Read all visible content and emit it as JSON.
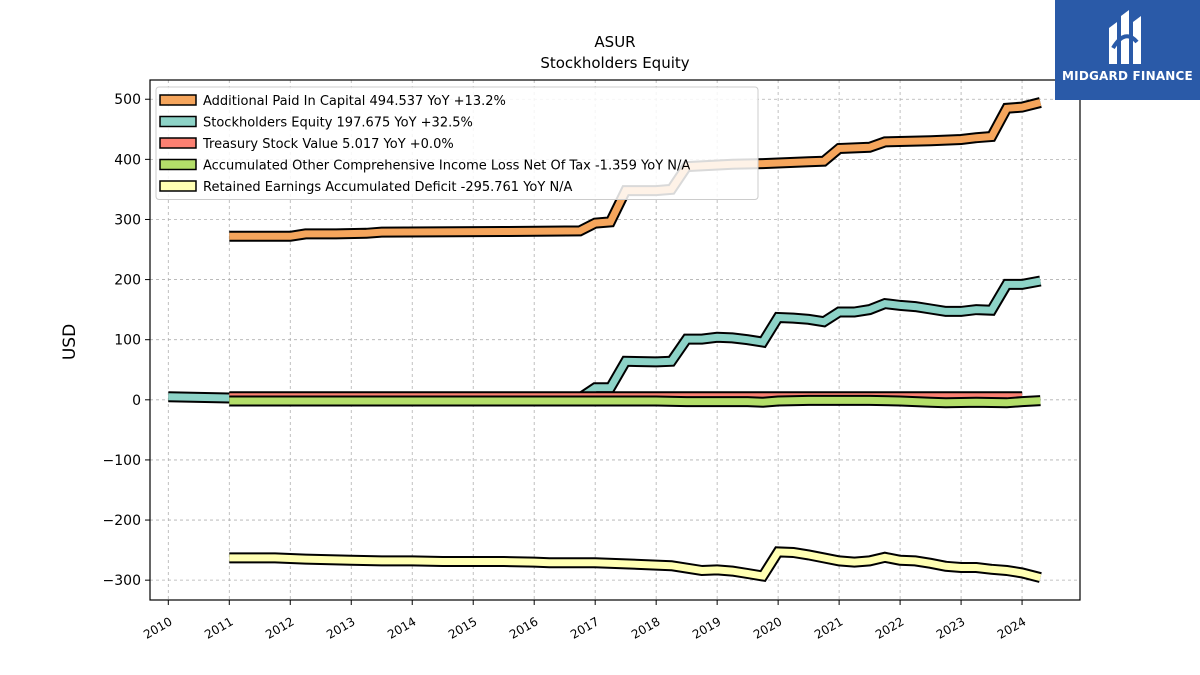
{
  "chart_data": {
    "type": "line",
    "title": "ASUR",
    "subtitle": "Stockholders  Equity",
    "ylabel": "USD",
    "xlabel": "",
    "xlim": [
      2009.7,
      2024.95
    ],
    "ylim": [
      -333,
      532
    ],
    "yticks": [
      -300,
      -200,
      -100,
      0,
      100,
      200,
      300,
      400,
      500
    ],
    "ytick_labels": [
      "−300",
      "−200",
      "−100",
      "0",
      "100",
      "200",
      "300",
      "400",
      "500"
    ],
    "xticks": [
      2010,
      2011,
      2012,
      2013,
      2014,
      2015,
      2016,
      2017,
      2018,
      2019,
      2020,
      2021,
      2022,
      2023,
      2024
    ],
    "xtick_labels": [
      "2010",
      "2011",
      "2012",
      "2013",
      "2014",
      "2015",
      "2016",
      "2017",
      "2018",
      "2019",
      "2020",
      "2021",
      "2022",
      "2023",
      "2024"
    ],
    "grid": true,
    "legend_position": "top-left",
    "series": [
      {
        "name": "Additional Paid In Capital",
        "legend": "Additional Paid In Capital  494.537 YoY +13.2%",
        "color": "#f5a55c",
        "points": [
          [
            2011.0,
            272
          ],
          [
            2012.0,
            272
          ],
          [
            2012.25,
            276
          ],
          [
            2012.75,
            276
          ],
          [
            2013.25,
            277
          ],
          [
            2013.5,
            279
          ],
          [
            2015.5,
            280
          ],
          [
            2016.75,
            281
          ],
          [
            2017.0,
            294
          ],
          [
            2017.25,
            296
          ],
          [
            2017.5,
            348
          ],
          [
            2018.0,
            348
          ],
          [
            2018.25,
            350
          ],
          [
            2018.5,
            388
          ],
          [
            2019.25,
            392
          ],
          [
            2019.75,
            393
          ],
          [
            2020.5,
            396
          ],
          [
            2020.75,
            397
          ],
          [
            2021.0,
            418
          ],
          [
            2021.5,
            420
          ],
          [
            2021.75,
            429
          ],
          [
            2022.5,
            431
          ],
          [
            2023.0,
            433
          ],
          [
            2023.25,
            436
          ],
          [
            2023.5,
            438
          ],
          [
            2023.75,
            485
          ],
          [
            2024.0,
            487
          ],
          [
            2024.3,
            494.537
          ]
        ]
      },
      {
        "name": "Stockholders Equity",
        "legend": "Stockholders Equity  197.675 YoY +32.5%",
        "color": "#8dd3c7",
        "points": [
          [
            2010.0,
            5
          ],
          [
            2011.0,
            3
          ],
          [
            2016.75,
            3
          ],
          [
            2017.0,
            20
          ],
          [
            2017.25,
            20
          ],
          [
            2017.5,
            64
          ],
          [
            2018.0,
            63
          ],
          [
            2018.25,
            64
          ],
          [
            2018.5,
            101
          ],
          [
            2018.75,
            101
          ],
          [
            2019.0,
            104
          ],
          [
            2019.25,
            103
          ],
          [
            2019.5,
            100
          ],
          [
            2019.75,
            96
          ],
          [
            2020.0,
            137
          ],
          [
            2020.25,
            136
          ],
          [
            2020.5,
            134
          ],
          [
            2020.75,
            130
          ],
          [
            2021.0,
            146
          ],
          [
            2021.25,
            146
          ],
          [
            2021.5,
            150
          ],
          [
            2021.75,
            160
          ],
          [
            2022.0,
            157
          ],
          [
            2022.25,
            155
          ],
          [
            2022.5,
            151
          ],
          [
            2022.75,
            147
          ],
          [
            2023.0,
            147
          ],
          [
            2023.25,
            150
          ],
          [
            2023.5,
            149
          ],
          [
            2023.75,
            192
          ],
          [
            2024.0,
            192
          ],
          [
            2024.3,
            197.675
          ]
        ]
      },
      {
        "name": "Treasury Stock Value",
        "legend": "Treasury Stock Value  5.017 YoY +0.0%",
        "color": "#fb8072",
        "points": [
          [
            2011.0,
            5.017
          ],
          [
            2024.0,
            5.017
          ]
        ]
      },
      {
        "name": "Accumulated Other Comprehensive Income Loss Net Of Tax",
        "legend": "Accumulated Other Comprehensive Income Loss Net Of Tax  -1.359 YoY N/A",
        "color": "#b3de69",
        "points": [
          [
            2011.0,
            -2
          ],
          [
            2018.0,
            -2
          ],
          [
            2018.5,
            -3
          ],
          [
            2019.5,
            -3
          ],
          [
            2019.75,
            -4
          ],
          [
            2020.0,
            -2
          ],
          [
            2020.5,
            -1
          ],
          [
            2021.5,
            -1
          ],
          [
            2022.0,
            -2
          ],
          [
            2022.5,
            -4
          ],
          [
            2022.75,
            -5
          ],
          [
            2023.25,
            -4
          ],
          [
            2023.75,
            -5
          ],
          [
            2024.0,
            -3
          ],
          [
            2024.3,
            -1.359
          ]
        ]
      },
      {
        "name": "Retained Earnings Accumulated Deficit",
        "legend": "Retained Earnings Accumulated Deficit  -295.761 YoY N/A",
        "color": "#ffffb3",
        "points": [
          [
            2011.0,
            -263
          ],
          [
            2011.75,
            -263
          ],
          [
            2012.25,
            -265
          ],
          [
            2013.0,
            -267
          ],
          [
            2013.5,
            -268
          ],
          [
            2014.0,
            -268
          ],
          [
            2014.5,
            -269
          ],
          [
            2015.5,
            -269
          ],
          [
            2016.0,
            -270
          ],
          [
            2016.25,
            -271
          ],
          [
            2017.0,
            -271
          ],
          [
            2017.5,
            -273
          ],
          [
            2018.0,
            -275
          ],
          [
            2018.25,
            -276
          ],
          [
            2018.75,
            -284
          ],
          [
            2019.0,
            -283
          ],
          [
            2019.25,
            -285
          ],
          [
            2019.5,
            -289
          ],
          [
            2019.75,
            -293
          ],
          [
            2020.0,
            -253
          ],
          [
            2020.25,
            -254
          ],
          [
            2020.5,
            -258
          ],
          [
            2020.75,
            -263
          ],
          [
            2021.0,
            -268
          ],
          [
            2021.25,
            -270
          ],
          [
            2021.5,
            -268
          ],
          [
            2021.75,
            -262
          ],
          [
            2022.0,
            -267
          ],
          [
            2022.25,
            -268
          ],
          [
            2022.5,
            -272
          ],
          [
            2022.75,
            -277
          ],
          [
            2023.0,
            -279
          ],
          [
            2023.25,
            -279
          ],
          [
            2023.5,
            -282
          ],
          [
            2023.75,
            -284
          ],
          [
            2024.0,
            -288
          ],
          [
            2024.3,
            -295.761
          ]
        ]
      }
    ]
  },
  "logo": {
    "text": "MIDGARD FINANCE",
    "icon": "midgard-finance-logo-icon",
    "background": "#2a5aa8"
  }
}
